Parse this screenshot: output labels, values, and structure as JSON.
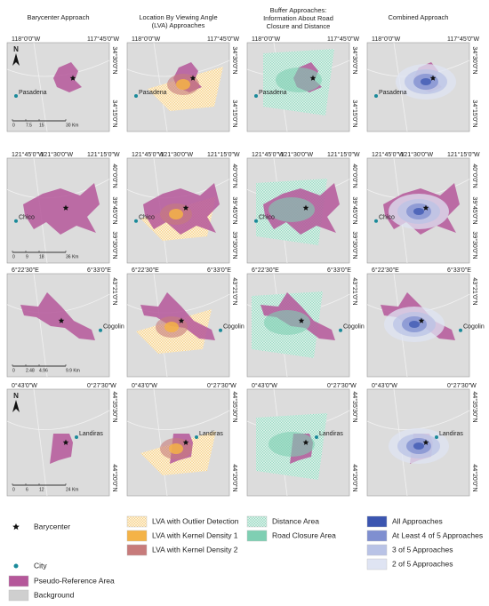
{
  "columns": [
    "Barycenter Approach",
    "Location By Viewing Angle (LVA) Approaches",
    "Buffer Approaches: Information About Road Closure and Distance",
    "Combined Approach"
  ],
  "rows": [
    {
      "lon_labels": [
        "118°0'0\"W",
        "117°45'0\"W"
      ],
      "lat_labels": [
        "34°30'0\"N",
        "34°15'0\"N"
      ],
      "city": "Pasadena",
      "scale_labels": [
        "0",
        "7.5",
        "15",
        "30 Km"
      ],
      "north": "N"
    },
    {
      "lon_labels": [
        "121°45'0\"W",
        "121°30'0\"W",
        "121°15'0\"W"
      ],
      "lat_labels": [
        "40°0'0\"N",
        "39°45'0\"N",
        "39°30'0\"N"
      ],
      "city": "Chico",
      "scale_labels": [
        "0",
        "9",
        "18",
        "36 Km"
      ]
    },
    {
      "lon_labels": [
        "6°22'30\"E",
        "6°33'0\"E"
      ],
      "lat_labels": [
        "43°21'0\"N"
      ],
      "city": "Cogolin",
      "scale_labels": [
        "0",
        "2.48",
        "4.96",
        "9.9 Km"
      ]
    },
    {
      "lon_labels": [
        "0°43'0\"W",
        "0°27'30\"W"
      ],
      "lat_labels": [
        "44°35'30\"N",
        "44°20'0\"N"
      ],
      "city": "Landiras",
      "scale_labels": [
        "0",
        "6",
        "12",
        "24 Km"
      ],
      "north": "N"
    }
  ],
  "legend": [
    "Barycenter",
    "City",
    "Pseudo-Reference Area",
    "Background",
    "LVA with Outlier Detection",
    "LVA with Kernel Density 1",
    "LVA with Kernel Density 2",
    "Distance Area",
    "Road Closure Area",
    "All Approaches",
    "At Least 4 of 5 Approaches",
    "3 of 5 Approaches",
    "2 of 5 Approaches"
  ]
}
